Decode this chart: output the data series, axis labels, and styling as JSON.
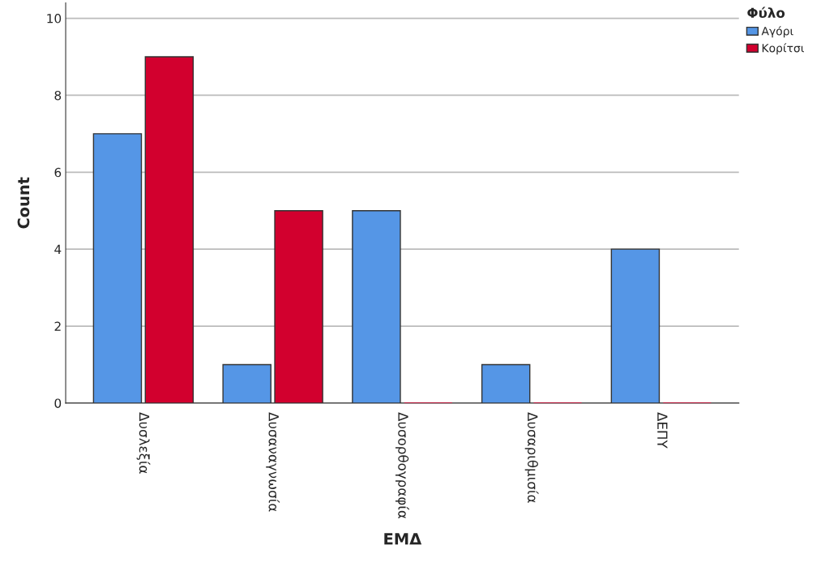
{
  "chart_data": {
    "type": "bar",
    "xlabel": "ΕΜΔ",
    "ylabel": "Count",
    "legend_title": "Φύλο",
    "categories": [
      "Δυσλεξία",
      "Δυσαναγνωσία",
      "Δυσορθογραφία",
      "Δυσαριθμισία",
      "ΔΕΠΥ"
    ],
    "series": [
      {
        "name": "Αγόρι",
        "color": "#5596e6",
        "values": [
          7,
          1,
          5,
          1,
          4
        ]
      },
      {
        "name": "Κορίτσι",
        "color": "#d2002e",
        "values": [
          9,
          5,
          0,
          0,
          0
        ]
      }
    ],
    "ylim": [
      0,
      10.4
    ],
    "yticks": [
      0,
      2,
      4,
      6,
      8,
      10
    ],
    "grid": "y",
    "legend": "top right"
  }
}
